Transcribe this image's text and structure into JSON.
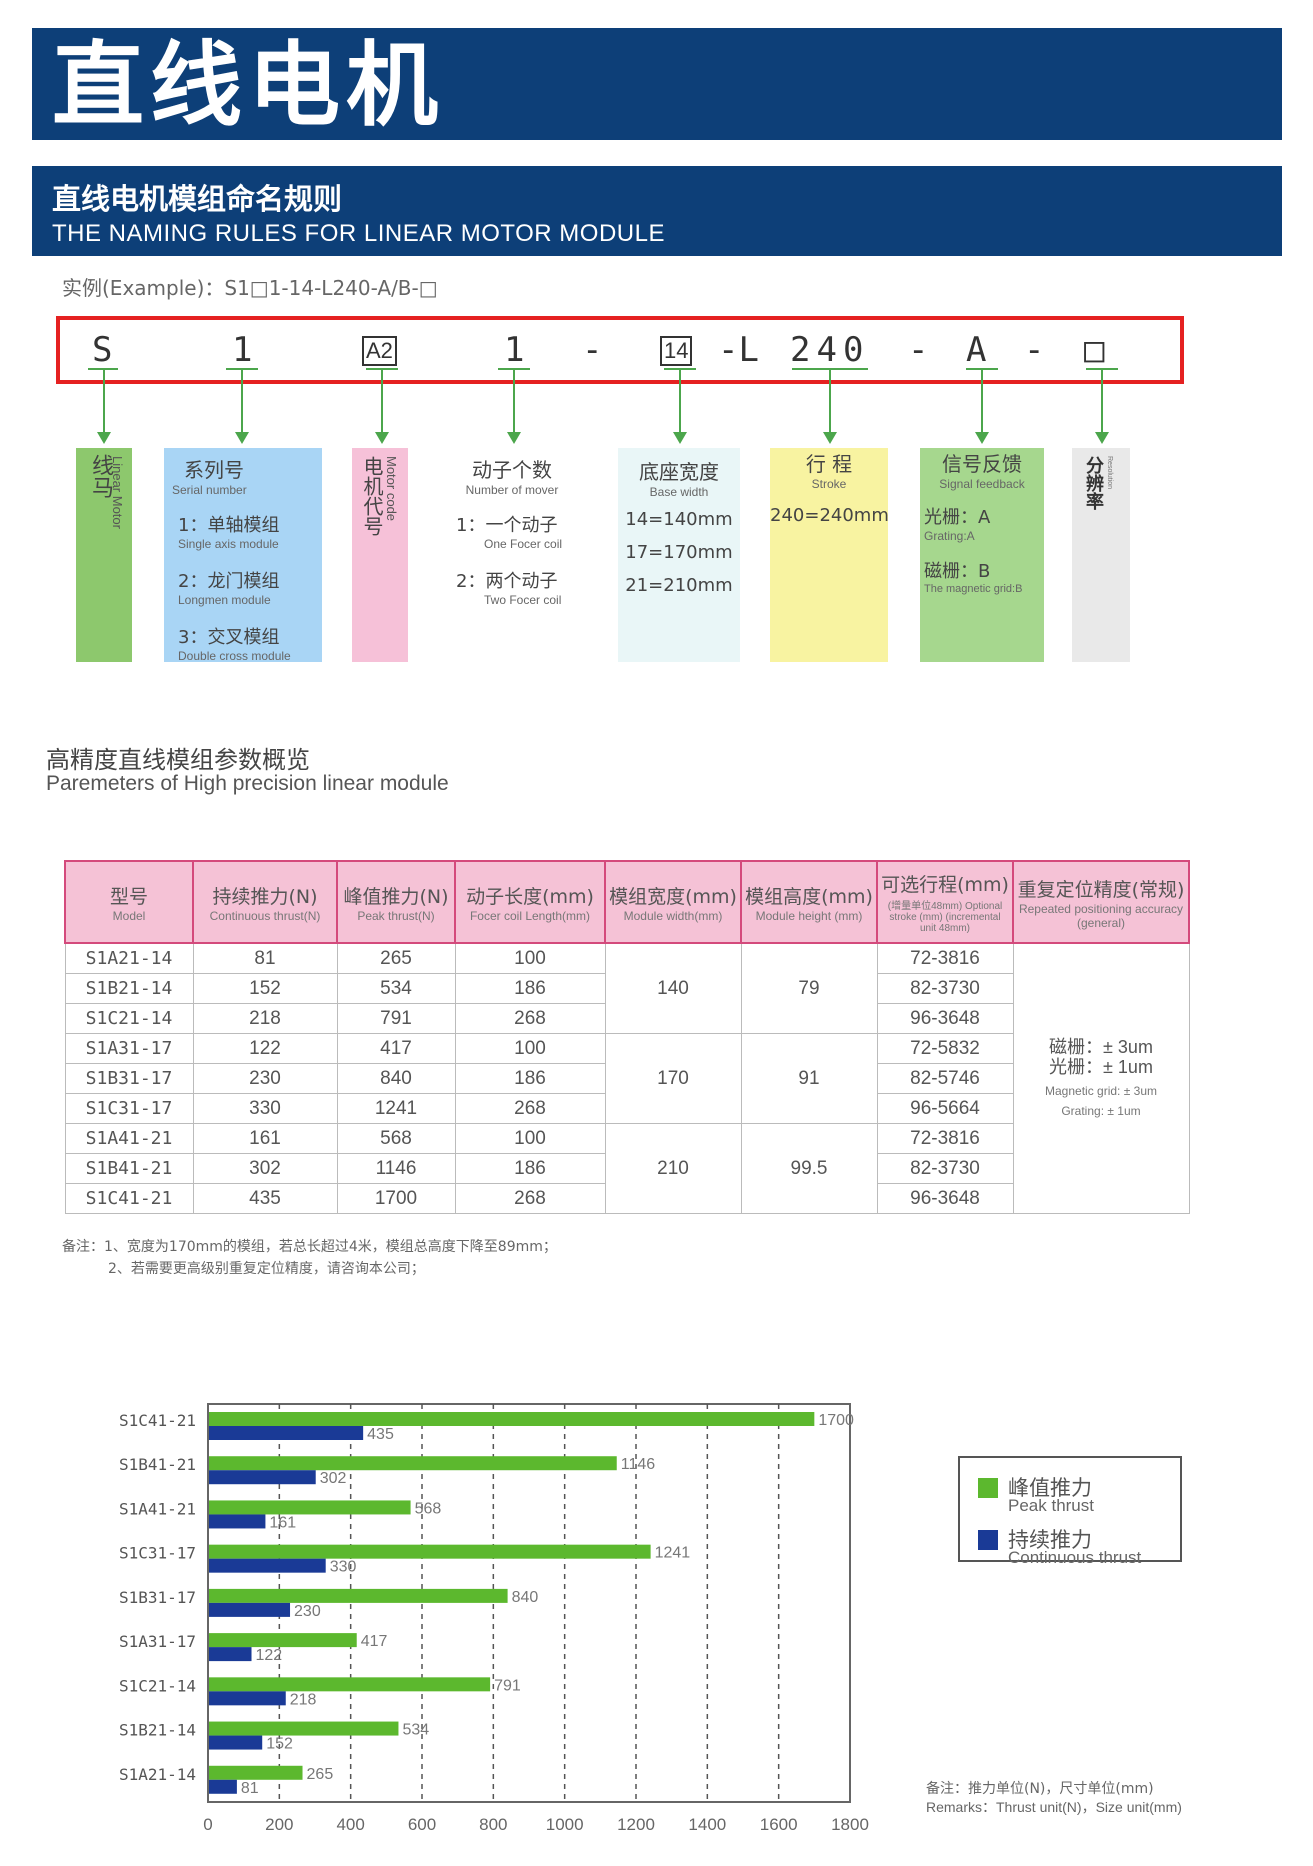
{
  "header": {
    "title": "直线电机",
    "subtitle_cn": "直线电机模组命名规则",
    "subtitle_en": "THE NAMING RULES FOR LINEAR MOTOR MODULE"
  },
  "example": "实例(Example)：S1□1-14-L240-A/B-□",
  "code": {
    "s": "S",
    "one": "1",
    "a2": "A2",
    "one2": "1",
    "dash1": "-",
    "n14": "14",
    "dashL": "-L",
    "n240": "240",
    "dash2": "-",
    "a": "A",
    "dash3": "-",
    "box": "□"
  },
  "cards": {
    "linear": {
      "cn": "线马",
      "en": "Linear Motor"
    },
    "series": {
      "cn": "系列号",
      "en": "Serial number",
      "items": [
        {
          "cn": "1：单轴模组",
          "en": "Single axis module"
        },
        {
          "cn": "2：龙门模组",
          "en": "Longmen module"
        },
        {
          "cn": "3：交叉模组",
          "en": "Double cross module"
        }
      ]
    },
    "motor": {
      "cn": "电机代号",
      "en": "Motor code"
    },
    "mover": {
      "cn": "动子个数",
      "en": "Number of mover",
      "items": [
        {
          "cn": "1：一个动子",
          "en": "One Focer coil"
        },
        {
          "cn": "2：两个动子",
          "en": "Two Focer coil"
        }
      ]
    },
    "base": {
      "cn": "底座宽度",
      "en": "Base width",
      "items": [
        "14=140mm",
        "17=170mm",
        "21=210mm"
      ]
    },
    "stroke": {
      "cn": "行  程",
      "en": "Stroke",
      "item": "240=240mm"
    },
    "signal": {
      "cn": "信号反馈",
      "en": "Signal feedback",
      "items": [
        {
          "cn": "光栅：A",
          "en": "Grating:A"
        },
        {
          "cn": "磁栅：B",
          "en": "The magnetic grid:B"
        }
      ]
    },
    "subdiv": {
      "cn": "分辨率",
      "en": "Resolution"
    }
  },
  "section2": {
    "cn": "高精度直线模组参数概览",
    "en": "Paremeters of High precision linear module"
  },
  "table": {
    "headers": [
      {
        "cn": "型号",
        "en": "Model"
      },
      {
        "cn": "持续推力(N)",
        "en": "Continuous thrust(N)"
      },
      {
        "cn": "峰值推力(N)",
        "en": "Peak thrust(N)"
      },
      {
        "cn": "动子长度(mm)",
        "en": "Focer coil Length(mm)"
      },
      {
        "cn": "模组宽度(mm)",
        "en": "Module width(mm)"
      },
      {
        "cn": "模组高度(mm)",
        "en": "Module height (mm)"
      },
      {
        "cn": "可选行程(mm)",
        "en": "(增量单位48mm) Optional stroke (mm) (incremental unit 48mm)"
      },
      {
        "cn": "重复定位精度(常规)",
        "en": "Repeated positioning accuracy (general)"
      }
    ],
    "rows": [
      [
        "S1A21-14",
        "81",
        "265",
        "100",
        "72-3816"
      ],
      [
        "S1B21-14",
        "152",
        "534",
        "186",
        "82-3730"
      ],
      [
        "S1C21-14",
        "218",
        "791",
        "268",
        "96-3648"
      ],
      [
        "S1A31-17",
        "122",
        "417",
        "100",
        "72-5832"
      ],
      [
        "S1B31-17",
        "230",
        "840",
        "186",
        "82-5746"
      ],
      [
        "S1C31-17",
        "330",
        "1241",
        "268",
        "96-5664"
      ],
      [
        "S1A41-21",
        "161",
        "568",
        "100",
        "72-3816"
      ],
      [
        "S1B41-21",
        "302",
        "1146",
        "186",
        "82-3730"
      ],
      [
        "S1C41-21",
        "435",
        "1700",
        "268",
        "96-3648"
      ]
    ],
    "groups": [
      {
        "width": "140",
        "height": "79"
      },
      {
        "width": "170",
        "height": "91"
      },
      {
        "width": "210",
        "height": "99.5"
      }
    ],
    "accuracy": {
      "l1": "磁栅：± 3um",
      "l2": "光栅：± 1um",
      "l3": "Magnetic grid: ± 3um",
      "l4": "Grating: ± 1um"
    }
  },
  "notes": {
    "l1": "备注：1、宽度为170mm的模组，若总长超过4米，模组总高度下降至89mm；",
    "l2": "2、若需要更高级别重复定位精度，请咨询本公司；"
  },
  "chart_data": {
    "type": "bar",
    "orientation": "horizontal",
    "categories": [
      "S1C41-21",
      "S1B41-21",
      "S1A41-21",
      "S1C31-17",
      "S1B31-17",
      "S1A31-17",
      "S1C21-14",
      "S1B21-14",
      "S1A21-14"
    ],
    "series": [
      {
        "name": "峰值推力 Peak thrust",
        "color": "#5cb82e",
        "values": [
          1700,
          1146,
          568,
          1241,
          840,
          417,
          791,
          534,
          265
        ]
      },
      {
        "name": "持续推力 Continuous thrust",
        "color": "#1a3a96",
        "values": [
          435,
          302,
          161,
          330,
          230,
          122,
          218,
          152,
          81
        ]
      }
    ],
    "xlim": [
      0,
      1800
    ],
    "xticks": [
      "0",
      "200",
      "400",
      "600",
      "800",
      "1000",
      "1200",
      "1400",
      "1600",
      "1800"
    ],
    "grid": "vertical dashed",
    "legend_position": "right",
    "legend": [
      {
        "cn": "峰值推力",
        "en": "Peak thrust"
      },
      {
        "cn": "持续推力",
        "en": "Continuous thrust"
      }
    ]
  },
  "remark": {
    "cn": "备注：推力单位(N)，尺寸单位(mm)",
    "en": "Remarks：Thrust unit(N)，Size unit(mm)"
  }
}
